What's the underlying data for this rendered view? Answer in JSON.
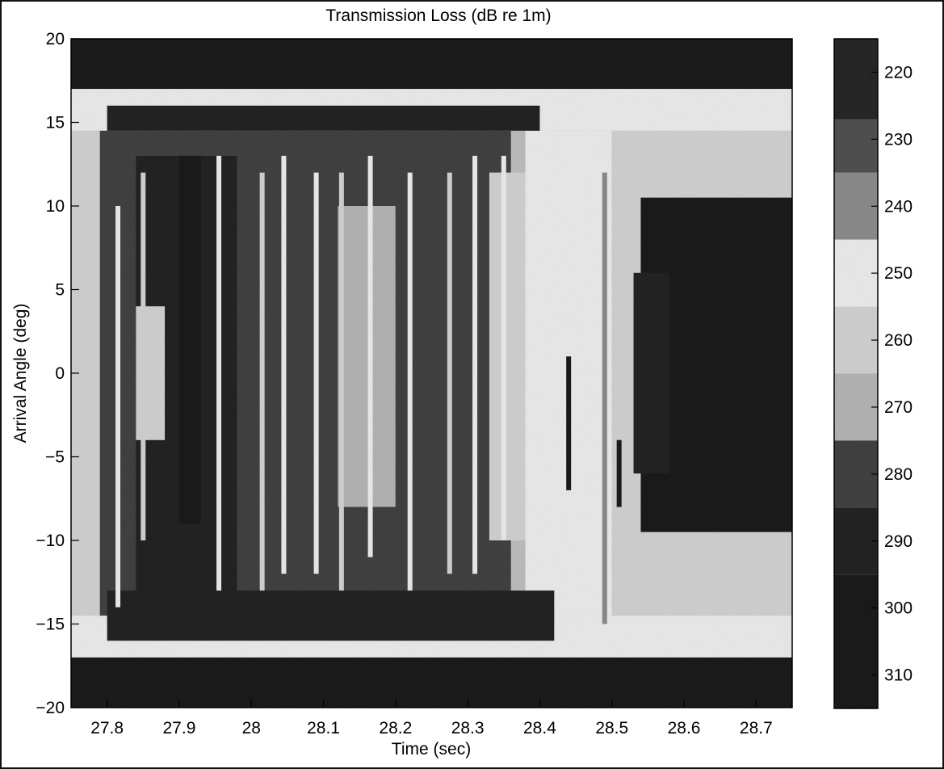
{
  "chart_data": {
    "type": "heatmap",
    "title": "Transmission Loss (dB re 1m)",
    "xlabel": "Time (sec)",
    "ylabel": "Arrival Angle (deg)",
    "xlim": [
      27.75,
      28.75
    ],
    "ylim": [
      -20,
      20
    ],
    "x_ticks": [
      "27.8",
      "27.9",
      "28",
      "28.1",
      "28.2",
      "28.3",
      "28.4",
      "28.5",
      "28.6",
      "28.7"
    ],
    "y_ticks": [
      "20",
      "15",
      "10",
      "5",
      "0",
      "−5",
      "−10",
      "−15",
      "−20"
    ],
    "colorbar": {
      "range": [
        215,
        315
      ],
      "ticks": [
        "220",
        "230",
        "240",
        "250",
        "260",
        "270",
        "280",
        "290",
        "300",
        "310"
      ],
      "bands": [
        {
          "from": 215,
          "to": 227,
          "value": 226
        },
        {
          "from": 227,
          "to": 235,
          "value": 232
        },
        {
          "from": 235,
          "to": 245,
          "value": 240
        },
        {
          "from": 245,
          "to": 255,
          "value": 250
        },
        {
          "from": 255,
          "to": 265,
          "value": 260
        },
        {
          "from": 265,
          "to": 275,
          "value": 270
        },
        {
          "from": 275,
          "to": 285,
          "value": 284
        },
        {
          "from": 285,
          "to": 295,
          "value": 295
        },
        {
          "from": 295,
          "to": 315,
          "value": 305
        }
      ]
    },
    "palette": {
      "216": "#101010",
      "226": "#1e1e1e",
      "232": "#4a4a4a",
      "240": "#888888",
      "250": "#eeeeee",
      "260": "#d2d2d2",
      "270": "#b4b4b4",
      "284": "#3a3a3a",
      "295": "#1a1a1a",
      "305": "#111111"
    },
    "regions": [
      {
        "x": [
          27.75,
          28.75
        ],
        "y": [
          17,
          20
        ],
        "value": 305
      },
      {
        "x": [
          27.75,
          28.75
        ],
        "y": [
          -20,
          -17
        ],
        "value": 305
      },
      {
        "x": [
          27.75,
          28.75
        ],
        "y": [
          14.5,
          17
        ],
        "value": 255
      },
      {
        "x": [
          27.75,
          28.75
        ],
        "y": [
          -17,
          -14.5
        ],
        "value": 255
      },
      {
        "x": [
          27.75,
          27.79
        ],
        "y": [
          -14.5,
          14.5
        ],
        "value": 258
      },
      {
        "x": [
          27.79,
          28.36
        ],
        "y": [
          -14.5,
          14.5
        ],
        "value": 278
      },
      {
        "x": [
          27.84,
          27.98
        ],
        "y": [
          -13,
          13
        ],
        "value": 292
      },
      {
        "x": [
          27.84,
          27.88
        ],
        "y": [
          -4,
          4
        ],
        "value": 260
      },
      {
        "x": [
          27.9,
          27.93
        ],
        "y": [
          -9,
          13
        ],
        "value": 305
      },
      {
        "x": [
          28.0,
          28.11
        ],
        "y": [
          -11,
          12
        ],
        "value": 284
      },
      {
        "x": [
          28.12,
          28.2
        ],
        "y": [
          -8,
          10
        ],
        "value": 270
      },
      {
        "x": [
          28.2,
          28.33
        ],
        "y": [
          -12,
          13
        ],
        "value": 284
      },
      {
        "x": [
          28.33,
          28.38
        ],
        "y": [
          -10,
          12
        ],
        "value": 262
      },
      {
        "x": [
          28.38,
          28.5
        ],
        "y": [
          -14.5,
          14.5
        ],
        "value": 250
      },
      {
        "x": [
          28.5,
          28.75
        ],
        "y": [
          -14.5,
          14.5
        ],
        "value": 262
      },
      {
        "x": [
          28.54,
          28.75
        ],
        "y": [
          -9.5,
          10.5
        ],
        "value": 305
      },
      {
        "x": [
          28.53,
          28.58
        ],
        "y": [
          -6,
          6
        ],
        "value": 295
      },
      {
        "x": [
          27.8,
          28.4
        ],
        "y": [
          14.5,
          16
        ],
        "value": 295
      },
      {
        "x": [
          27.8,
          28.42
        ],
        "y": [
          -16,
          -13
        ],
        "value": 295
      }
    ],
    "stripes": [
      {
        "x": 27.815,
        "y": [
          -14,
          10
        ],
        "value": 250
      },
      {
        "x": 27.85,
        "y": [
          -10,
          12
        ],
        "value": 262
      },
      {
        "x": 27.955,
        "y": [
          -13,
          13
        ],
        "value": 250
      },
      {
        "x": 28.015,
        "y": [
          -13,
          12
        ],
        "value": 262
      },
      {
        "x": 28.045,
        "y": [
          -12,
          13
        ],
        "value": 250
      },
      {
        "x": 28.09,
        "y": [
          -12,
          12
        ],
        "value": 250
      },
      {
        "x": 28.125,
        "y": [
          -13,
          12
        ],
        "value": 262
      },
      {
        "x": 28.165,
        "y": [
          -11,
          13
        ],
        "value": 250
      },
      {
        "x": 28.22,
        "y": [
          -13,
          12
        ],
        "value": 250
      },
      {
        "x": 28.275,
        "y": [
          -12,
          12
        ],
        "value": 262
      },
      {
        "x": 28.31,
        "y": [
          -12,
          13
        ],
        "value": 250
      },
      {
        "x": 28.35,
        "y": [
          -10,
          13
        ],
        "value": 250
      },
      {
        "x": 28.44,
        "y": [
          -7,
          1
        ],
        "value": 305
      },
      {
        "x": 28.51,
        "y": [
          -8,
          -4
        ],
        "value": 305
      },
      {
        "x": 28.49,
        "y": [
          -15,
          12
        ],
        "value": 240
      }
    ],
    "x_edges": [
      27.75,
      27.77,
      27.79,
      27.81,
      27.83,
      27.85,
      27.87,
      27.89,
      27.91,
      27.93,
      27.95,
      27.97,
      27.99,
      28.01,
      28.03,
      28.05,
      28.07,
      28.09,
      28.11,
      28.13,
      28.15,
      28.17,
      28.19,
      28.21,
      28.23,
      28.25,
      28.27,
      28.29,
      28.31,
      28.33,
      28.35,
      28.37,
      28.39,
      28.41,
      28.43,
      28.45,
      28.47,
      28.49,
      28.51,
      28.53,
      28.55,
      28.57,
      28.59,
      28.61,
      28.63,
      28.65,
      28.67,
      28.69,
      28.71,
      28.73,
      28.75
    ],
    "y_edges": [
      20,
      19,
      18,
      17,
      16,
      15,
      14,
      13,
      12,
      11,
      10,
      9,
      8,
      7,
      6,
      5,
      4,
      3,
      2,
      1,
      0,
      -1,
      -2,
      -3,
      -4,
      -5,
      -6,
      -7,
      -8,
      -9,
      -10,
      -11,
      -12,
      -13,
      -14,
      -15,
      -16,
      -17,
      -18,
      -19,
      -20
    ]
  }
}
